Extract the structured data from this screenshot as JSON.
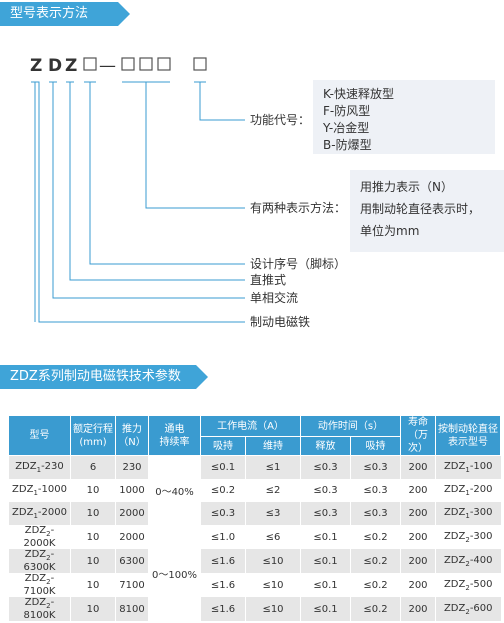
{
  "section1": {
    "title": "型号表示方法"
  },
  "model_code": {
    "letters": [
      "Z",
      "D",
      "Z"
    ],
    "dash": "—"
  },
  "labels": [
    "功能代号：",
    "有两种表示方法：",
    "设计序号（脚标）",
    "直推式",
    "单相交流",
    "制动电磁铁"
  ],
  "function_box": {
    "lines": [
      "K-快速释放型",
      "F-防风型",
      "Y-冶金型",
      "B-防爆型"
    ]
  },
  "method_box": {
    "lines": [
      "用推力表示（N）",
      "用制动轮直径表示时，",
      "单位为mm"
    ]
  },
  "section2": {
    "title": "ZDZ系列制动电磁铁技术参数"
  },
  "table": {
    "headers": {
      "model": [
        "型号"
      ],
      "stroke": [
        "额定行程",
        "(mm)"
      ],
      "thrust": [
        "推力",
        "（N）"
      ],
      "duty": [
        "通电",
        "持续率"
      ],
      "current": "工作电流（A）",
      "current_hold": "吸持",
      "current_maintain": "维持",
      "time": "动作时间（s）",
      "time_release": "释放",
      "time_hold": "吸持",
      "life": [
        "寿命",
        "（万次）"
      ],
      "wheel_model": [
        "按制动轮直径",
        "表示型号"
      ]
    },
    "rows": [
      {
        "model": {
          "base": "ZDZ",
          "sub": "1",
          "suffix": "-230"
        },
        "stroke": 6,
        "thrust": 230,
        "duty": "0～40%",
        "current_hold": "≤0.1",
        "current_maintain": "≤1",
        "time_release": "≤0.3",
        "time_hold": "≤0.3",
        "life": 200,
        "wheel_model": {
          "base": "ZDZ",
          "sub": "1",
          "suffix": "-100"
        }
      },
      {
        "model": {
          "base": "ZDZ",
          "sub": "1",
          "suffix": "-1000"
        },
        "stroke": 10,
        "thrust": 1000,
        "current_hold": "≤0.2",
        "current_maintain": "≤2",
        "time_release": "≤0.3",
        "time_hold": "≤0.3",
        "life": 200,
        "wheel_model": {
          "base": "ZDZ",
          "sub": "1",
          "suffix": "-200"
        }
      },
      {
        "model": {
          "base": "ZDZ",
          "sub": "1",
          "suffix": "-2000"
        },
        "stroke": 10,
        "thrust": 2000,
        "current_hold": "≤0.3",
        "current_maintain": "≤3",
        "time_release": "≤0.3",
        "time_hold": "≤0.3",
        "life": 200,
        "wheel_model": {
          "base": "ZDZ",
          "sub": "1",
          "suffix": "-300"
        }
      },
      {
        "model": {
          "base": "ZDZ",
          "sub": "2",
          "suffix": "-2000K"
        },
        "stroke": 10,
        "thrust": 2000,
        "duty": "0～100%",
        "current_hold": "≤1.0",
        "current_maintain": "≤6",
        "time_release": "≤0.1",
        "time_hold": "≤0.2",
        "life": 200,
        "wheel_model": {
          "base": "ZDZ",
          "sub": "2",
          "suffix": "-300"
        }
      },
      {
        "model": {
          "base": "ZDZ",
          "sub": "2",
          "suffix": "-6300K"
        },
        "stroke": 10,
        "thrust": 6300,
        "current_hold": "≤1.6",
        "current_maintain": "≤10",
        "time_release": "≤0.1",
        "time_hold": "≤0.2",
        "life": 200,
        "wheel_model": {
          "base": "ZDZ",
          "sub": "2",
          "suffix": "-400"
        }
      },
      {
        "model": {
          "base": "ZDZ",
          "sub": "2",
          "suffix": "-7100K"
        },
        "stroke": 10,
        "thrust": 7100,
        "current_hold": "≤1.6",
        "current_maintain": "≤10",
        "time_release": "≤0.1",
        "time_hold": "≤0.2",
        "life": 200,
        "wheel_model": {
          "base": "ZDZ",
          "sub": "2",
          "suffix": "-500"
        }
      },
      {
        "model": {
          "base": "ZDZ",
          "sub": "2",
          "suffix": "-8100K"
        },
        "stroke": 10,
        "thrust": 8100,
        "current_hold": "≤1.6",
        "current_maintain": "≤10",
        "time_release": "≤0.1",
        "time_hold": "≤0.2",
        "life": 200,
        "wheel_model": {
          "base": "ZDZ",
          "sub": "2",
          "suffix": "-600"
        }
      }
    ]
  }
}
